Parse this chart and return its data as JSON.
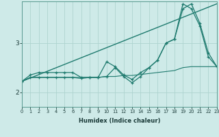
{
  "xlabel": "Humidex (Indice chaleur)",
  "bg_color": "#ceeae8",
  "grid_color": "#aed4d0",
  "line_color": "#1e7a6e",
  "x_min": 0,
  "x_max": 23,
  "y_min": 1.7,
  "y_max": 3.85,
  "yticks": [
    2,
    3
  ],
  "xticks": [
    0,
    1,
    2,
    3,
    4,
    5,
    6,
    7,
    8,
    9,
    10,
    11,
    12,
    13,
    14,
    15,
    16,
    17,
    18,
    19,
    20,
    21,
    22,
    23
  ],
  "line_trend_x": [
    0,
    23
  ],
  "line_trend_y": [
    2.22,
    3.8
  ],
  "line_flat_x": [
    0,
    1,
    2,
    3,
    4,
    5,
    6,
    7,
    8,
    9,
    10,
    11,
    12,
    13,
    14,
    15,
    16,
    17,
    18,
    19,
    20,
    21,
    22,
    23
  ],
  "line_flat_y": [
    2.22,
    2.3,
    2.3,
    2.3,
    2.3,
    2.3,
    2.3,
    2.3,
    2.3,
    2.3,
    2.32,
    2.32,
    2.34,
    2.34,
    2.36,
    2.38,
    2.4,
    2.42,
    2.44,
    2.5,
    2.52,
    2.52,
    2.52,
    2.52
  ],
  "line_volatile_x": [
    0,
    1,
    2,
    3,
    4,
    5,
    6,
    7,
    8,
    9,
    10,
    11,
    12,
    13,
    14,
    15,
    16,
    17,
    18,
    19,
    20,
    21,
    22,
    23
  ],
  "line_volatile_y": [
    2.22,
    2.35,
    2.4,
    2.4,
    2.4,
    2.4,
    2.4,
    2.3,
    2.3,
    2.3,
    2.62,
    2.52,
    2.35,
    2.26,
    2.4,
    2.5,
    2.65,
    3.0,
    3.08,
    3.7,
    3.8,
    3.4,
    2.8,
    2.52
  ],
  "line_lower_x": [
    0,
    1,
    2,
    3,
    4,
    5,
    6,
    7,
    8,
    9,
    10,
    11,
    12,
    13,
    14,
    15,
    16,
    17,
    18,
    19,
    20,
    21,
    22,
    23
  ],
  "line_lower_y": [
    2.22,
    2.3,
    2.3,
    2.3,
    2.3,
    2.3,
    2.3,
    2.28,
    2.3,
    2.3,
    2.32,
    2.5,
    2.32,
    2.19,
    2.32,
    2.5,
    2.65,
    3.0,
    3.08,
    3.8,
    3.7,
    3.35,
    2.72,
    2.52
  ]
}
